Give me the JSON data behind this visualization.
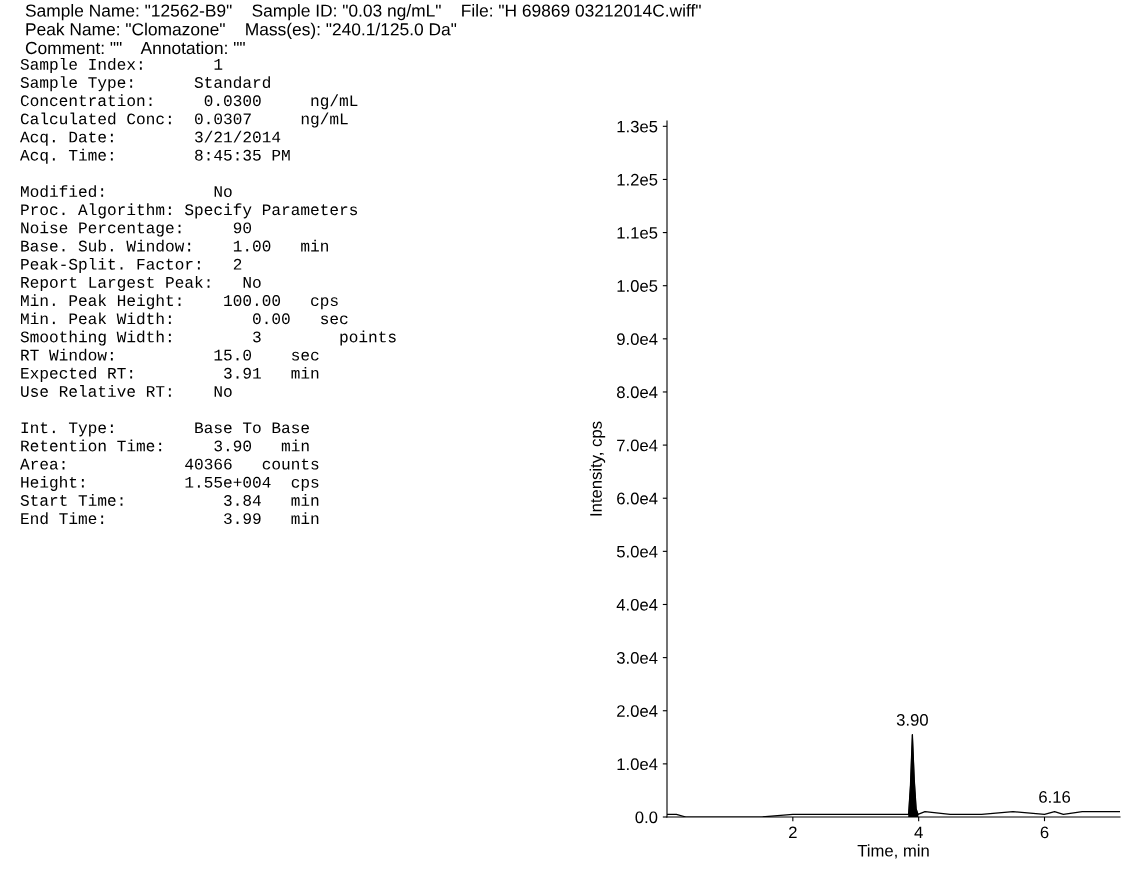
{
  "chart_data": {
    "type": "line",
    "title": "Sample Name: \"12562-B9\"    Sample ID: \"0.03 ng/mL\"    File: \"H 69869 03212014C.wiff\"\nPeak Name: \"Clomazone\"    Mass(es): \"240.1/125.0 Da\"\nComment: \"\"    Annotation: \"\"",
    "xlabel": "Time, min",
    "ylabel": "Intensity, cps",
    "series": [
      {
        "color": "#000000",
        "x": [
          0.0,
          0.15,
          0.3,
          0.6,
          1.0,
          1.5,
          2.0,
          2.5,
          3.0,
          3.5,
          3.8,
          3.84,
          3.87,
          3.9,
          3.93,
          3.96,
          3.99,
          4.1,
          4.5,
          5.0,
          5.5,
          6.0,
          6.16,
          6.3,
          6.6,
          7.0,
          7.2
        ],
        "values": [
          500,
          500,
          0,
          0,
          0,
          0,
          500,
          500,
          500,
          500,
          500,
          500,
          6000,
          15500,
          7000,
          1500,
          500,
          1000,
          500,
          500,
          1000,
          500,
          1000,
          500,
          1000,
          1000,
          1000
        ]
      },
      {
        "type": "area",
        "color": "#000000",
        "x": [
          3.84,
          3.87,
          3.9,
          3.93,
          3.96,
          3.99
        ],
        "values": [
          500,
          6000,
          15500,
          7000,
          1500,
          500
        ]
      }
    ],
    "xlim": [
      0,
      7.2
    ],
    "xticks": [
      2,
      4,
      6
    ],
    "ylim": [
      0,
      131000
    ],
    "yticks": [
      {
        "value": 0,
        "label": "0.0"
      },
      {
        "value": 10000,
        "label": "1.0e4"
      },
      {
        "value": 20000,
        "label": "2.0e4"
      },
      {
        "value": 30000,
        "label": "3.0e4"
      },
      {
        "value": 40000,
        "label": "4.0e4"
      },
      {
        "value": 50000,
        "label": "5.0e4"
      },
      {
        "value": 60000,
        "label": "6.0e4"
      },
      {
        "value": 70000,
        "label": "7.0e4"
      },
      {
        "value": 80000,
        "label": "8.0e4"
      },
      {
        "value": 90000,
        "label": "9.0e4"
      },
      {
        "value": 100000,
        "label": "1.0e5"
      },
      {
        "value": 110000,
        "label": "1.1e5"
      },
      {
        "value": 120000,
        "label": "1.2e5"
      },
      {
        "value": 130000,
        "label": "1.3e5"
      }
    ],
    "grid": false,
    "annotations": [
      "Sample Index:       1\nSample Type:      Standard\nConcentration:     0.0300     ng/mL\nCalculated Conc:  0.0307     ng/mL\nAcq. Date:        3/21/2014\nAcq. Time:        8:45:35 PM\n\nModified:           No\nProc. Algorithm: Specify Parameters\nNoise Percentage:     90\nBase. Sub. Window:    1.00   min\nPeak-Split. Factor:   2\nReport Largest Peak:   No\nMin. Peak Height:    100.00   cps\nMin. Peak Width:        0.00   sec\nSmoothing Width:        3        points\nRT Window:          15.0    sec\nExpected RT:         3.91   min\nUse Relative RT:    No\n\nInt. Type:        Base To Base\nRetention Time:     3.90   min\nArea:            40366   counts\nHeight:          1.55e+004  cps\nStart Time:          3.84   min\nEnd Time:            3.99   min",
      {
        "text": "3.90",
        "x": 3.9,
        "y": 15500
      },
      {
        "text": "6.16",
        "x": 6.16,
        "y": 1000
      }
    ]
  }
}
